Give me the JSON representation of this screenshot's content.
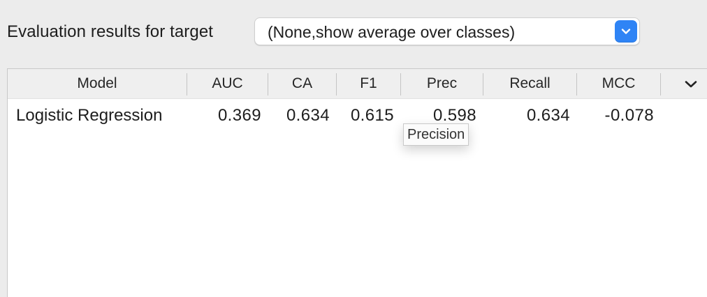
{
  "target": {
    "label": "Evaluation results for target",
    "selected": "(None,show average over classes)"
  },
  "table": {
    "columns": [
      "Model",
      "AUC",
      "CA",
      "F1",
      "Prec",
      "Recall",
      "MCC"
    ],
    "rows": [
      {
        "model": "Logistic Regression",
        "auc": "0.369",
        "ca": "0.634",
        "f1": "0.615",
        "prec": "0.598",
        "recall": "0.634",
        "mcc": "-0.078"
      }
    ]
  },
  "tooltip": {
    "text": "Precision"
  },
  "icons": {
    "select": "chevron-down-icon",
    "columns_menu": "chevron-down-icon"
  },
  "colors": {
    "accent": "#2f84f5",
    "header_bg": "#efefef",
    "window_bg": "#ececec"
  }
}
